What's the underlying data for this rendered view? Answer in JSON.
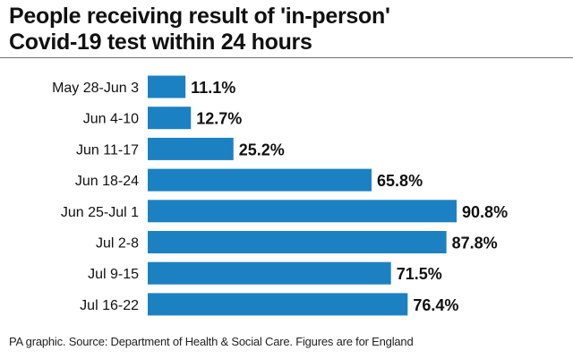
{
  "colors": {
    "bar": "#1b81c3"
  },
  "chart_data": {
    "type": "bar",
    "orientation": "horizontal",
    "title": "People receiving result of 'in-person' Covid-19 test within 24 hours",
    "title_lines": [
      "People receiving result of 'in-person'",
      "Covid-19 test within 24 hours"
    ],
    "categories": [
      "May 28-Jun 3",
      "Jun 4-10",
      "Jun 11-17",
      "Jun 18-24",
      "Jun 25-Jul 1",
      "Jul 2-8",
      "Jul 9-15",
      "Jul 16-22"
    ],
    "values": [
      11.1,
      12.7,
      25.2,
      65.8,
      90.8,
      87.8,
      71.5,
      76.4
    ],
    "value_labels": [
      "11.1%",
      "12.7%",
      "25.2%",
      "65.8%",
      "90.8%",
      "87.8%",
      "71.5%",
      "76.4%"
    ],
    "unit": "%",
    "xlim": [
      0,
      100
    ],
    "xlabel": "",
    "ylabel": ""
  },
  "source": "PA graphic. Source: Department of Health & Social Care. Figures are for England"
}
